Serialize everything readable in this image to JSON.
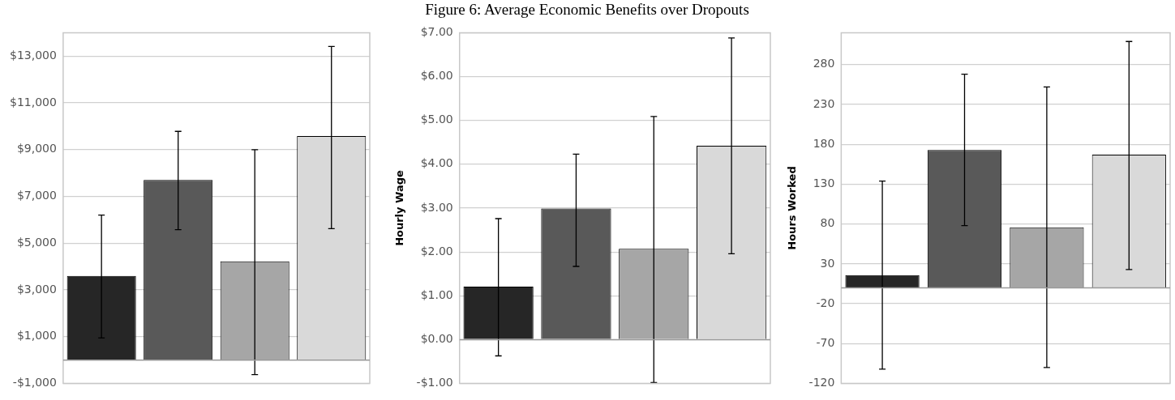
{
  "chart_data": [
    {
      "type": "bar",
      "categories": [
        null,
        null,
        null,
        null
      ],
      "values": [
        3600,
        7700,
        4220,
        9580
      ],
      "colors": [
        "#262626",
        "#595959",
        "#a6a6a6",
        "#d9d9d9"
      ],
      "errors": [
        [
          950,
          6200
        ],
        [
          5580,
          9780
        ],
        [
          -620,
          9000
        ],
        [
          5620,
          13410
        ]
      ],
      "ylim": [
        -1000,
        14000
      ],
      "yticks": [
        {
          "value": -1000,
          "label": "-$1,000"
        },
        {
          "value": 1000,
          "label": "$1,000"
        },
        {
          "value": 3000,
          "label": "$3,000"
        },
        {
          "value": 5000,
          "label": "$5,000"
        },
        {
          "value": 7000,
          "label": "$7,000"
        },
        {
          "value": 9000,
          "label": "$9,000"
        },
        {
          "value": 11000,
          "label": "$11,000"
        },
        {
          "value": 13000,
          "label": "$13,000"
        }
      ],
      "grid": "y"
    },
    {
      "type": "bar",
      "title": "Figure 6: Average Economic Benefits over Dropouts",
      "ylabel": "Hourly Wage",
      "categories": [
        null,
        null,
        null,
        null
      ],
      "values": [
        1.21,
        2.99,
        2.07,
        4.42
      ],
      "colors": [
        "#262626",
        "#595959",
        "#a6a6a6",
        "#d9d9d9"
      ],
      "errors": [
        [
          -0.37,
          2.76
        ],
        [
          1.67,
          4.23
        ],
        [
          -0.98,
          5.09
        ],
        [
          1.96,
          6.88
        ]
      ],
      "ylim": [
        -1,
        7
      ],
      "yticks": [
        {
          "value": -1,
          "label": "-$1.00"
        },
        {
          "value": 0,
          "label": "$0.00"
        },
        {
          "value": 1,
          "label": "$1.00"
        },
        {
          "value": 2,
          "label": "$2.00"
        },
        {
          "value": 3,
          "label": "$3.00"
        },
        {
          "value": 4,
          "label": "$4.00"
        },
        {
          "value": 5,
          "label": "$5.00"
        },
        {
          "value": 6,
          "label": "$6.00"
        },
        {
          "value": 7,
          "label": "$7.00"
        }
      ],
      "grid": "y"
    },
    {
      "type": "bar",
      "ylabel": "Hours Worked",
      "categories": [
        null,
        null,
        null,
        null
      ],
      "values": [
        16,
        173,
        76,
        167
      ],
      "colors": [
        "#262626",
        "#595959",
        "#a6a6a6",
        "#d9d9d9"
      ],
      "errors": [
        [
          -102,
          134
        ],
        [
          78,
          268
        ],
        [
          -100,
          252
        ],
        [
          23,
          309
        ]
      ],
      "ylim": [
        -120,
        320
      ],
      "yticks": [
        -120,
        -70,
        -20,
        30,
        80,
        130,
        180,
        230,
        280
      ],
      "grid": "y"
    }
  ]
}
